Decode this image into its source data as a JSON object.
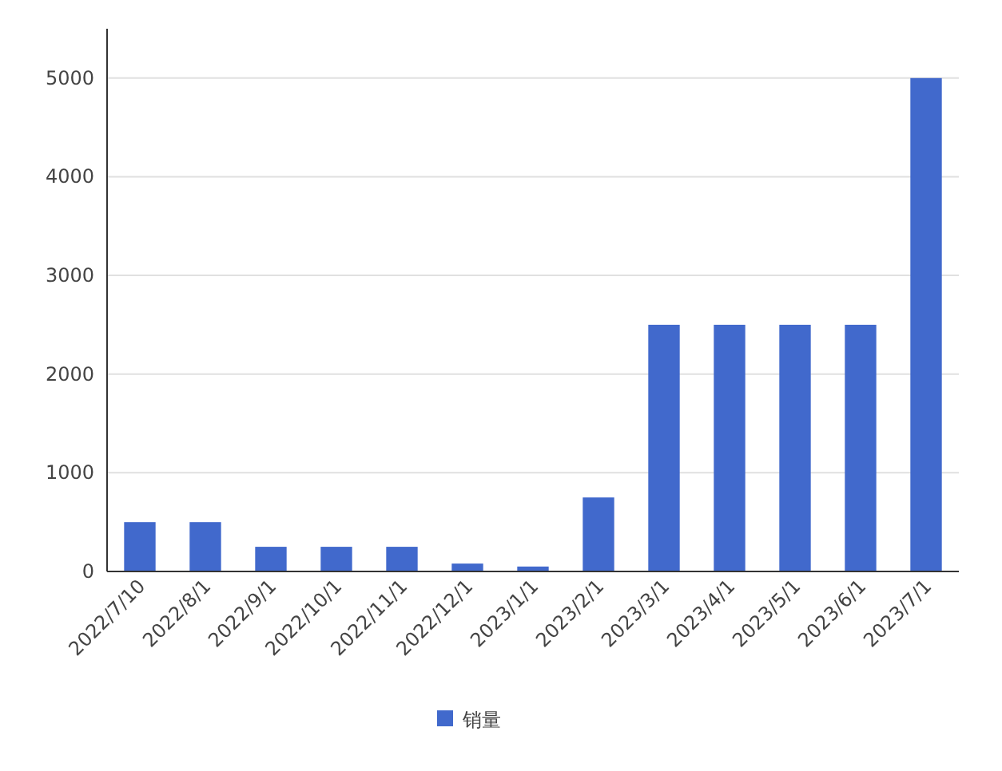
{
  "chart_data": {
    "type": "bar",
    "categories": [
      "2022/7/10",
      "2022/8/1",
      "2022/9/1",
      "2022/10/1",
      "2022/11/1",
      "2022/12/1",
      "2023/1/1",
      "2023/2/1",
      "2023/3/1",
      "2023/4/1",
      "2023/5/1",
      "2023/6/1",
      "2023/7/1"
    ],
    "series": [
      {
        "name": "销量",
        "color": "#4169cc",
        "values": [
          500,
          500,
          250,
          250,
          250,
          80,
          50,
          750,
          2500,
          2500,
          2500,
          2500,
          5000
        ]
      }
    ],
    "ylim": [
      0,
      5500
    ],
    "yticks": [
      0,
      1000,
      2000,
      3000,
      4000,
      5000
    ],
    "grid": "y",
    "legend": "bottom"
  }
}
